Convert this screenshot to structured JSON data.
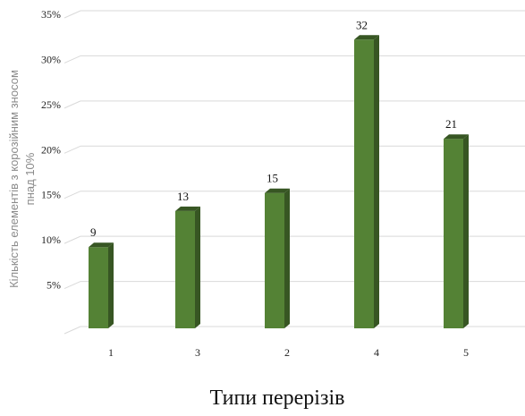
{
  "chart_data": {
    "type": "bar",
    "title": "",
    "xlabel": "Типи перерізів",
    "ylabel": [
      "Кількість елементів з корозійним зносом",
      "пнад 10%"
    ],
    "categories": [
      "1",
      "3",
      "2",
      "4",
      "5"
    ],
    "values": [
      9,
      13,
      15,
      32,
      21
    ],
    "data_labels": [
      "9",
      "13",
      "15",
      "32",
      "21"
    ],
    "y_ticks": [
      0,
      5,
      10,
      15,
      20,
      25,
      30,
      35
    ],
    "y_tick_labels": [
      "",
      "5%",
      "10%",
      "15%",
      "20%",
      "25%",
      "30%",
      "35%"
    ],
    "ylim": [
      0,
      35
    ],
    "grid": true,
    "legend": "none",
    "colors": {
      "bar_front": "#548235",
      "bar_top": "#375623",
      "bar_side": "#375623",
      "grid": "#d9d9d9"
    }
  }
}
